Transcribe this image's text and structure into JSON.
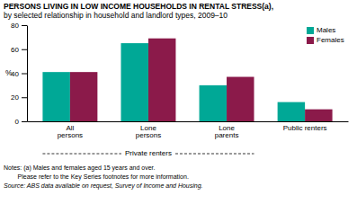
{
  "chart_data": {
    "type": "bar",
    "title": "PERSONS LIVING IN LOW INCOME HOUSEHOLDS IN RENTAL STRESS(a),",
    "subtitle": "by selected relationship in household and landlord types, 2009–10",
    "categories": [
      "All\npersons",
      "Lone\npersons",
      "Lone\nparents",
      "Public renters"
    ],
    "series": [
      {
        "name": "Males",
        "color": "#00A896",
        "values": [
          41,
          65,
          30,
          16
        ]
      },
      {
        "name": "Females",
        "color": "#8B1A4A",
        "values": [
          41,
          69,
          37,
          10
        ]
      }
    ],
    "ylim": [
      0,
      80
    ],
    "yticks": [
      0,
      20,
      40,
      60,
      80
    ],
    "ylabel": "%",
    "annotations": [
      "Private renters"
    ],
    "notes": [
      "Notes: (a) Males and females aged 15 years and over.",
      "        Please refer to the Key Series footnotes for more information."
    ],
    "source": "Source: ABS data available on request, Survey of Income and Housing.",
    "legend": "top-right",
    "grid": false
  }
}
